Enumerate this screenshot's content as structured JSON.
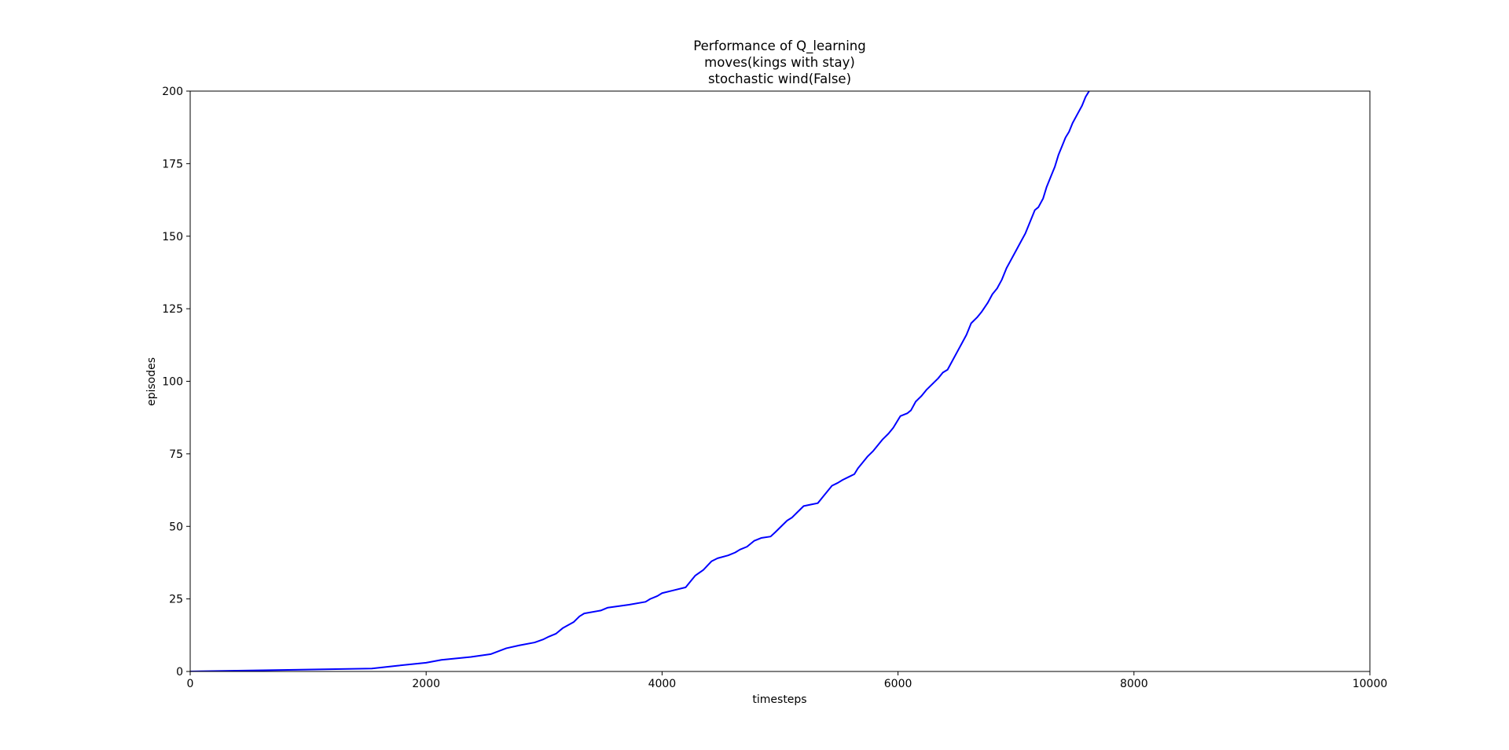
{
  "chart_data": {
    "type": "line",
    "title_lines": [
      "Performance of Q_learning",
      "moves(kings with stay)",
      "stochastic wind(False)"
    ],
    "xlabel": "timesteps",
    "ylabel": "episodes",
    "xlim": [
      0,
      10000
    ],
    "ylim": [
      0,
      200
    ],
    "xticks": [
      0,
      2000,
      4000,
      6000,
      8000,
      10000
    ],
    "yticks": [
      0,
      25,
      50,
      75,
      100,
      125,
      150,
      175,
      200
    ],
    "grid": false,
    "legend": "none",
    "series": [
      {
        "color": "#0000ff",
        "x": [
          0,
          1540,
          1760,
          2000,
          2130,
          2380,
          2550,
          2680,
          2790,
          2920,
          2990,
          3040,
          3100,
          3160,
          3250,
          3300,
          3340,
          3480,
          3540,
          3720,
          3860,
          3900,
          3960,
          4000,
          4100,
          4200,
          4240,
          4280,
          4350,
          4420,
          4470,
          4560,
          4620,
          4660,
          4720,
          4780,
          4840,
          4920,
          4960,
          5010,
          5060,
          5100,
          5150,
          5200,
          5260,
          5320,
          5360,
          5400,
          5440,
          5490,
          5530,
          5580,
          5630,
          5660,
          5700,
          5740,
          5790,
          5830,
          5870,
          5920,
          5960,
          6020,
          6080,
          6110,
          6150,
          6200,
          6240,
          6290,
          6340,
          6380,
          6420,
          6460,
          6500,
          6540,
          6580,
          6620,
          6670,
          6710,
          6760,
          6800,
          6840,
          6880,
          6920,
          6960,
          7000,
          7040,
          7080,
          7120,
          7160,
          7190,
          7230,
          7260,
          7300,
          7330,
          7360,
          7390,
          7420,
          7450,
          7480,
          7520,
          7560,
          7590,
          7620,
          7650
        ],
        "y": [
          0,
          1,
          2,
          3,
          4,
          5,
          6,
          8,
          9,
          10,
          11,
          12,
          13,
          15,
          17,
          19,
          20,
          21,
          22,
          23,
          24,
          25,
          26,
          27,
          28,
          29,
          31,
          33,
          35,
          38,
          39,
          40,
          41,
          42,
          43,
          45,
          46,
          46.5,
          48,
          50,
          52,
          53,
          55,
          57,
          57.5,
          58,
          60,
          62,
          64,
          65,
          66,
          67,
          68,
          70,
          72,
          74,
          76,
          78,
          80,
          82,
          84,
          88,
          89,
          90,
          93,
          95,
          97,
          99,
          101,
          103,
          104,
          107,
          110,
          113,
          116,
          120,
          122,
          124,
          127,
          130,
          132,
          135,
          139,
          142,
          145,
          148,
          151,
          155,
          159,
          160,
          163,
          167,
          171,
          174,
          178,
          181,
          184,
          186,
          189,
          192,
          195,
          198,
          200,
          202
        ]
      }
    ]
  }
}
